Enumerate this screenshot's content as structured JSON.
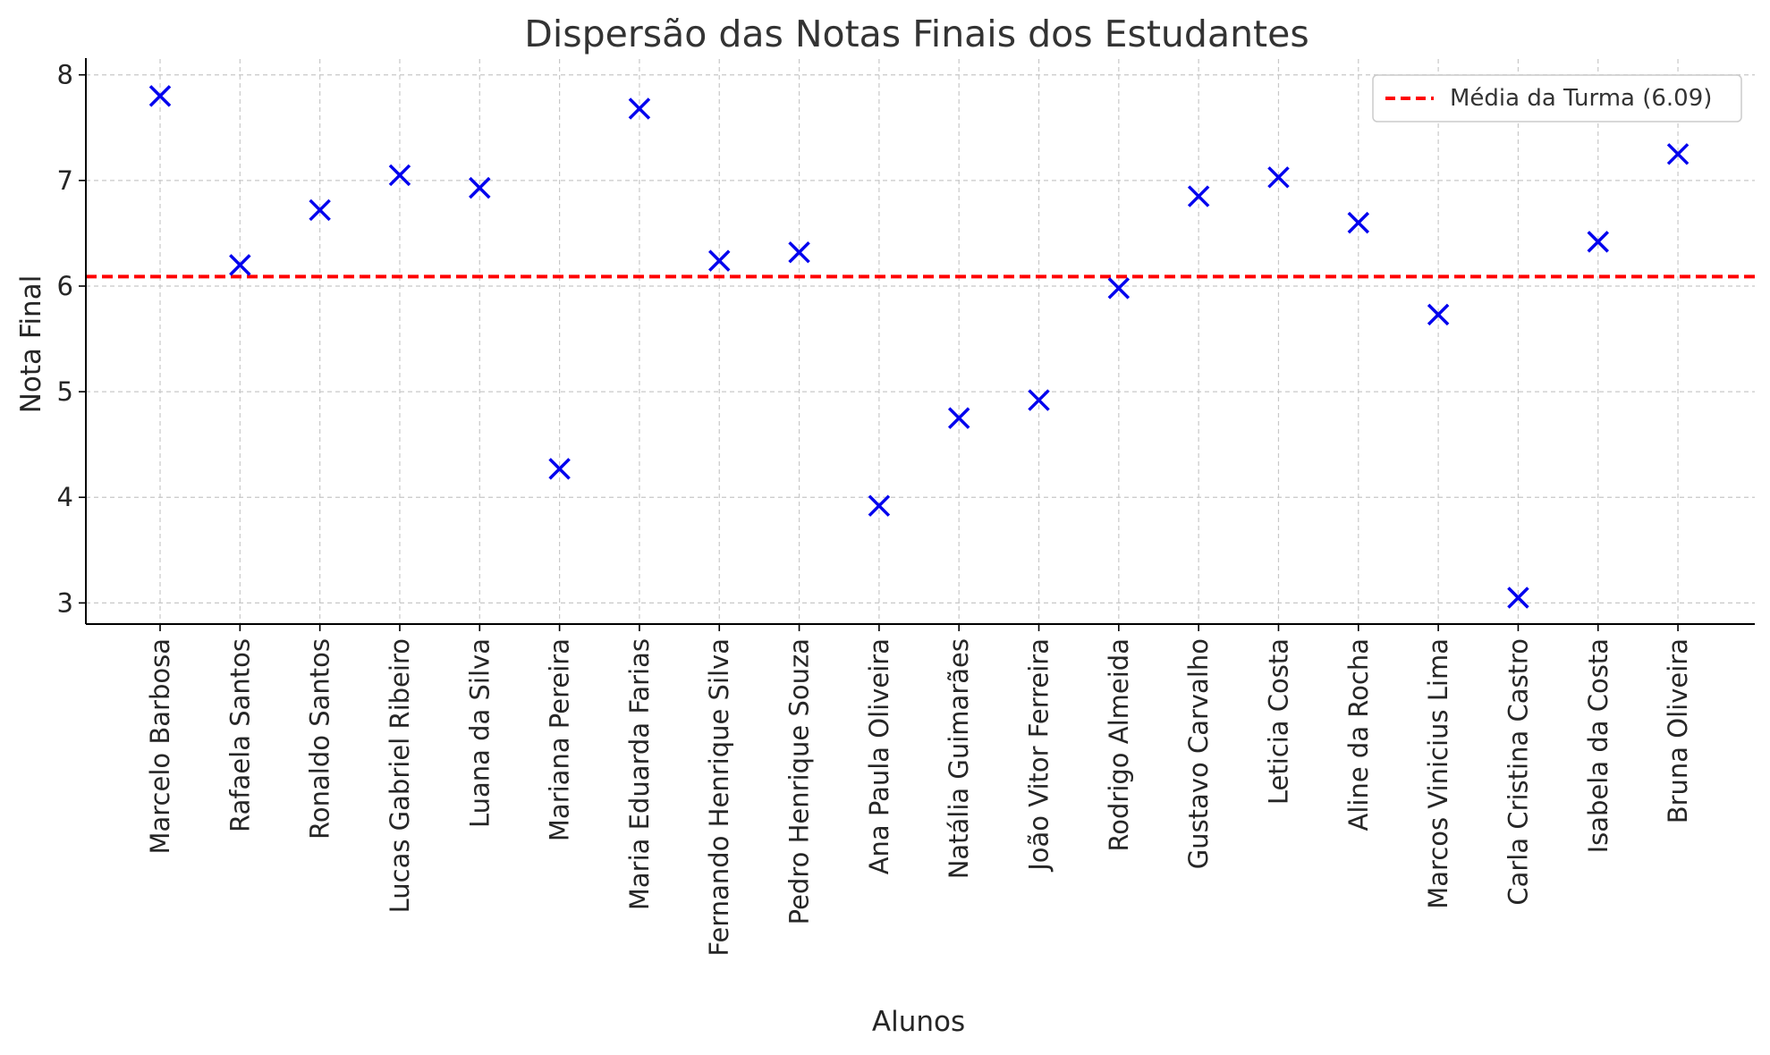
{
  "chart_data": {
    "type": "scatter",
    "title": "Dispersão das Notas Finais dos Estudantes",
    "xlabel": "Alunos",
    "ylabel": "Nota Final",
    "categories": [
      "Marcelo Barbosa",
      "Rafaela Santos",
      "Ronaldo Santos",
      "Lucas Gabriel Ribeiro",
      "Luana da Silva",
      "Mariana Pereira",
      "Maria Eduarda Farias",
      "Fernando Henrique Silva",
      "Pedro Henrique Souza",
      "Ana Paula Oliveira",
      "Natália Guimarães",
      "João Vitor Ferreira",
      "Rodrigo Almeida",
      "Gustavo Carvalho",
      "Leticia Costa",
      "Aline da Rocha",
      "Marcos Vinicius Lima",
      "Carla Cristina Castro",
      "Isabela da Costa",
      "Bruna Oliveira"
    ],
    "series": [
      {
        "values": [
          7.8,
          6.2,
          6.72,
          7.05,
          6.93,
          4.27,
          7.68,
          6.24,
          6.32,
          3.92,
          4.75,
          4.92,
          5.98,
          6.85,
          7.03,
          6.6,
          5.73,
          3.05,
          6.42,
          7.25
        ],
        "marker": "x",
        "color": "#0000ee"
      }
    ],
    "reference_line": {
      "label": "Média da Turma (6.09)",
      "value": 6.09,
      "style": "dashed",
      "color": "#ff0000"
    },
    "yticks": [
      3,
      4,
      5,
      6,
      7,
      8
    ],
    "ylim": [
      2.8,
      8.15
    ],
    "grid": true,
    "legend_position": "top-right"
  }
}
